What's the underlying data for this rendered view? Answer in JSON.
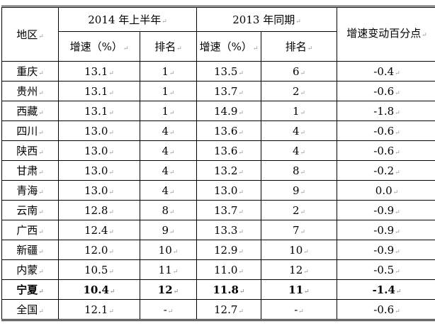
{
  "header": {
    "region": "地区",
    "group2014": "2014 年上半年",
    "group2013": "2013 年同期",
    "change": "增速变动百分点",
    "growth": "增速（%）",
    "rank": "排名"
  },
  "rows": [
    {
      "region": "重庆",
      "g2014": "13.1",
      "r2014": "1",
      "g2013": "13.5",
      "r2013": "6",
      "change": "-0.4"
    },
    {
      "region": "贵州",
      "g2014": "13.1",
      "r2014": "1",
      "g2013": "13.7",
      "r2013": "2",
      "change": "-0.6"
    },
    {
      "region": "西藏",
      "g2014": "13.1",
      "r2014": "1",
      "g2013": "14.9",
      "r2013": "1",
      "change": "-1.8"
    },
    {
      "region": "四川",
      "g2014": "13.0",
      "r2014": "4",
      "g2013": "13.6",
      "r2013": "4",
      "change": "-0.6"
    },
    {
      "region": "陕西",
      "g2014": "13.0",
      "r2014": "4",
      "g2013": "13.6",
      "r2013": "4",
      "change": "-0.6"
    },
    {
      "region": "甘肃",
      "g2014": "13.0",
      "r2014": "4",
      "g2013": "13.2",
      "r2013": "8",
      "change": "-0.2"
    },
    {
      "region": "青海",
      "g2014": "13.0",
      "r2014": "4",
      "g2013": "13.0",
      "r2013": "9",
      "change": "0.0"
    },
    {
      "region": "云南",
      "g2014": "12.8",
      "r2014": "8",
      "g2013": "13.7",
      "r2013": "2",
      "change": "-0.9"
    },
    {
      "region": "广西",
      "g2014": "12.4",
      "r2014": "9",
      "g2013": "13.3",
      "r2013": "7",
      "change": "-0.9"
    },
    {
      "region": "新疆",
      "g2014": "12.0",
      "r2014": "10",
      "g2013": "12.9",
      "r2013": "10",
      "change": "-0.9"
    },
    {
      "region": "内蒙",
      "g2014": "10.5",
      "r2014": "11",
      "g2013": "11.0",
      "r2013": "12",
      "change": "-0.5"
    },
    {
      "region": "宁夏",
      "g2014": "10.4",
      "r2014": "12",
      "g2013": "11.8",
      "r2013": "11",
      "change": "-1.4",
      "bold": true
    },
    {
      "region": "全国",
      "g2014": "12.1",
      "r2014": "-",
      "g2013": "12.7",
      "r2013": "-",
      "change": "-0.6"
    }
  ]
}
